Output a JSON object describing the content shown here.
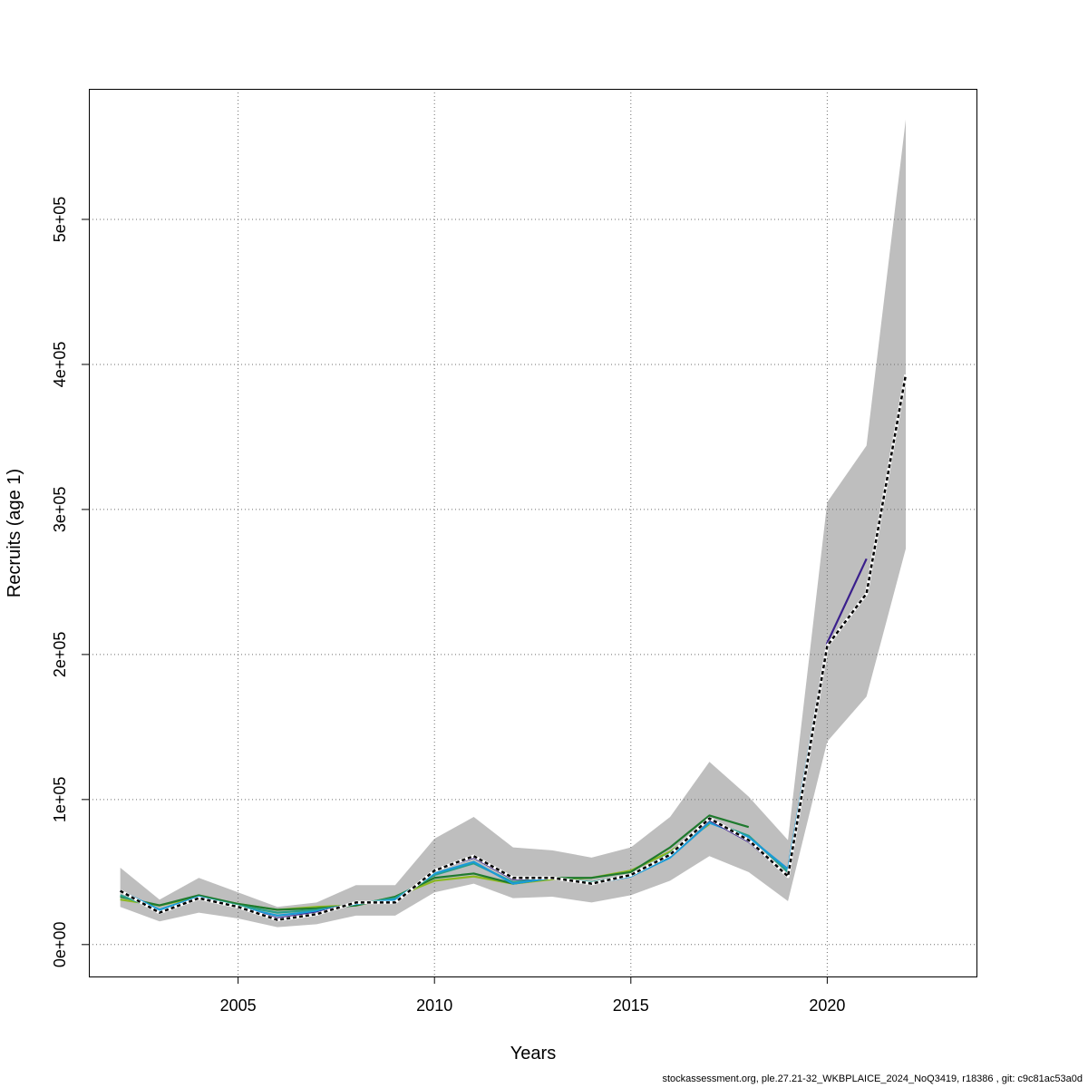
{
  "footer_text": "stockassessment.org, ple.27.21-32_WKBPLAICE_2024_NoQ3419, r18386 , git: c9c81ac53a0d",
  "chart_data": {
    "type": "line",
    "xlabel": "Years",
    "ylabel": "Recruits (age 1)",
    "xlim": [
      2001.2,
      2023.8
    ],
    "ylim": [
      -22000,
      590000
    ],
    "x_ticks": [
      2005,
      2010,
      2015,
      2020
    ],
    "x_tick_labels": [
      "2005",
      "2010",
      "2015",
      "2020"
    ],
    "y_ticks": [
      0,
      100000,
      200000,
      300000,
      400000,
      500000
    ],
    "y_tick_labels": [
      "0e+00",
      "1e+05",
      "2e+05",
      "3e+05",
      "4e+05",
      "5e+05"
    ],
    "grid": true,
    "confidence_band": {
      "color": "#bebebe",
      "x": [
        2002,
        2003,
        2004,
        2005,
        2006,
        2007,
        2008,
        2009,
        2010,
        2011,
        2012,
        2013,
        2014,
        2015,
        2016,
        2017,
        2018,
        2019,
        2020,
        2021,
        2022
      ],
      "lower": [
        26000,
        16000,
        22000,
        18000,
        12000,
        14000,
        20000,
        20000,
        36000,
        42000,
        32000,
        33000,
        29000,
        34000,
        44000,
        61000,
        50000,
        30000,
        140000,
        171000,
        273000
      ],
      "upper": [
        53000,
        31000,
        46000,
        36000,
        26000,
        29000,
        41000,
        41000,
        73000,
        88000,
        67000,
        65000,
        60000,
        67000,
        88000,
        126000,
        102000,
        72000,
        305000,
        344000,
        569000
      ]
    },
    "series": [
      {
        "color": "#000000",
        "dashed": true,
        "x": [
          2002,
          2003,
          2004,
          2005,
          2006,
          2007,
          2008,
          2009,
          2010,
          2011,
          2012,
          2013,
          2014,
          2015,
          2016,
          2017,
          2018,
          2019,
          2020,
          2021,
          2022
        ],
        "values": [
          37000,
          22000,
          32000,
          26000,
          17000,
          21000,
          29000,
          29000,
          51000,
          61000,
          46000,
          46000,
          42000,
          48000,
          62000,
          87000,
          72000,
          47000,
          206000,
          242000,
          393000
        ]
      },
      {
        "color": "#3a1f8c",
        "dashed": false,
        "x": [
          2002,
          2003,
          2004,
          2005,
          2006,
          2007,
          2008,
          2009,
          2010,
          2011,
          2012,
          2013,
          2014,
          2015,
          2016,
          2017,
          2018,
          2019,
          2020,
          2021
        ],
        "values": [
          37000,
          22000,
          32000,
          26000,
          18000,
          22000,
          29000,
          29000,
          51000,
          60000,
          45000,
          46000,
          42000,
          48000,
          62000,
          86000,
          71000,
          47000,
          208000,
          266000
        ]
      },
      {
        "color": "#1a9bd7",
        "dashed": false,
        "x": [
          2002,
          2003,
          2004,
          2005,
          2006,
          2007,
          2008,
          2009,
          2010,
          2011,
          2012,
          2013,
          2014,
          2015,
          2016,
          2017,
          2018,
          2019,
          2020
        ],
        "values": [
          37000,
          24000,
          33000,
          26000,
          20000,
          23000,
          28000,
          31000,
          49000,
          57000,
          42000,
          46000,
          42000,
          47000,
          60000,
          84000,
          74000,
          52000,
          207000
        ]
      },
      {
        "color": "#2aa08a",
        "dashed": false,
        "x": [
          2002,
          2003,
          2004,
          2005,
          2006,
          2007,
          2008,
          2009,
          2010,
          2011,
          2012,
          2013,
          2014,
          2015,
          2016,
          2017,
          2018,
          2019
        ],
        "values": [
          34000,
          24000,
          33000,
          27000,
          22000,
          24000,
          28000,
          32000,
          48000,
          56000,
          43000,
          46000,
          43000,
          48000,
          63000,
          85000,
          75000,
          50000
        ]
      },
      {
        "color": "#1f7a2e",
        "dashed": false,
        "x": [
          2002,
          2003,
          2004,
          2005,
          2006,
          2007,
          2008,
          2009,
          2010,
          2011,
          2012,
          2013,
          2014,
          2015,
          2016,
          2017,
          2018
        ],
        "values": [
          33000,
          27000,
          34000,
          28000,
          24000,
          25000,
          27000,
          33000,
          46000,
          49000,
          42000,
          46000,
          46000,
          50000,
          67000,
          89000,
          81000
        ]
      },
      {
        "color": "#8cb81f",
        "dashed": false,
        "x": [
          2002,
          2003,
          2004,
          2005,
          2006,
          2007,
          2008,
          2009,
          2010,
          2011,
          2012,
          2013,
          2014,
          2015,
          2016,
          2017
        ],
        "values": [
          31000,
          27000,
          33000,
          28000,
          24000,
          26000,
          27000,
          33000,
          44000,
          47000,
          42000,
          45000,
          46000,
          51000,
          64000,
          83000
        ]
      }
    ]
  }
}
